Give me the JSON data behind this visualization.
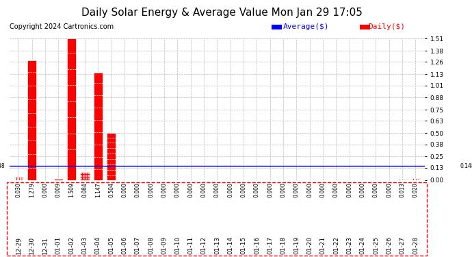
{
  "title": "Daily Solar Energy & Average Value Mon Jan 29 17:05",
  "copyright": "Copyright 2024 Cartronics.com",
  "categories": [
    "12-29",
    "12-30",
    "12-31",
    "01-01",
    "01-02",
    "01-03",
    "01-04",
    "01-05",
    "01-06",
    "01-07",
    "01-08",
    "01-09",
    "01-10",
    "01-11",
    "01-12",
    "01-13",
    "01-14",
    "01-15",
    "01-16",
    "01-17",
    "01-18",
    "01-19",
    "01-20",
    "01-21",
    "01-22",
    "01-23",
    "01-24",
    "01-25",
    "01-26",
    "01-27",
    "01-28"
  ],
  "daily_values": [
    0.03,
    1.279,
    0.0,
    0.009,
    1.509,
    0.084,
    1.147,
    0.504,
    0.0,
    0.0,
    0.0,
    0.0,
    0.0,
    0.0,
    0.0,
    0.0,
    0.0,
    0.0,
    0.0,
    0.0,
    0.0,
    0.0,
    0.0,
    0.0,
    0.0,
    0.0,
    0.0,
    0.0,
    0.0,
    0.013,
    0.02
  ],
  "average_value": 0.148,
  "ylim": [
    0.0,
    1.51
  ],
  "yticks": [
    0.0,
    0.13,
    0.25,
    0.38,
    0.5,
    0.63,
    0.75,
    0.88,
    1.01,
    1.13,
    1.26,
    1.38,
    1.51
  ],
  "bar_color": "#ff0000",
  "bar_edge_color": "#ffffff",
  "avg_line_color": "#0000ff",
  "avg_line_label": "Average($)",
  "daily_label": "Daily($)",
  "background_color": "#ffffff",
  "grid_color": "#bbbbbb",
  "title_fontsize": 11,
  "copyright_fontsize": 7,
  "tick_fontsize": 6.5,
  "value_fontsize": 5.5,
  "legend_fontsize": 8
}
